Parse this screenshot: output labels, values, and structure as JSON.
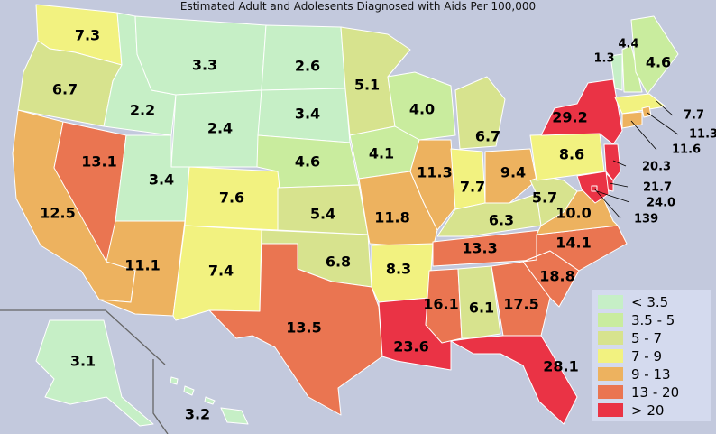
{
  "title": "Estimated Adult and Adolesents Diagnosed with Aids Per 100,000",
  "legend": {
    "items": [
      {
        "label": "< 3.5",
        "color": "#c6efc6"
      },
      {
        "label": "3.5 - 5",
        "color": "#c9ec9e"
      },
      {
        "label": "5 - 7",
        "color": "#d7e38e"
      },
      {
        "label": "7 - 9",
        "color": "#f2f280"
      },
      {
        "label": "9 - 13",
        "color": "#edb25f"
      },
      {
        "label": "13 - 20",
        "color": "#ea7551"
      },
      {
        "label": "> 20",
        "color": "#ea3345"
      }
    ]
  },
  "states": {
    "WA": "7.3",
    "OR": "6.7",
    "CA": "12.5",
    "NV": "13.1",
    "ID": "2.2",
    "MT": "3.3",
    "WY": "2.4",
    "UT": "3.4",
    "AZ": "11.1",
    "CO": "7.6",
    "NM": "7.4",
    "ND": "2.6",
    "SD": "3.4",
    "NE": "4.6",
    "KS": "5.4",
    "OK": "6.8",
    "TX": "13.5",
    "MN": "5.1",
    "IA": "4.1",
    "MO": "11.8",
    "AR": "8.3",
    "LA": "23.6",
    "WI": "4.0",
    "IL": "11.3",
    "MI": "6.7",
    "IN": "7.7",
    "OH": "9.4",
    "KY": "6.3",
    "TN": "13.3",
    "MS": "16.1",
    "AL": "6.1",
    "GA": "17.5",
    "FL": "28.1",
    "SC": "18.8",
    "NC": "14.1",
    "VA": "10.0",
    "WV": "5.7",
    "PA": "8.6",
    "NY": "29.2",
    "VT": "1.3",
    "NH": "4.4",
    "ME": "4.6",
    "MA": "7.7",
    "RI": "11.3",
    "CT": "11.6",
    "NJ": "20.3",
    "DE": "21.7",
    "MD": "24.0",
    "DC": "139",
    "AK": "3.1",
    "HI": "3.2"
  }
}
